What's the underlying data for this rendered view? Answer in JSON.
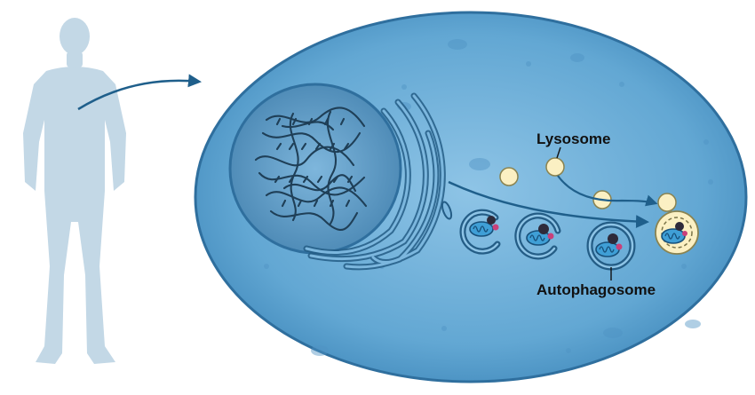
{
  "labels": {
    "lysosome": "Lysosome",
    "autophagosome": "Autophagosome"
  },
  "colors": {
    "body_silhouette": "#c3d8e6",
    "cell_fill": "#5fa4cf",
    "cell_edge": "#2f6f9e",
    "nucleus_fill": "#4f8cb8",
    "dna": "#1f3f57",
    "organelle_outline": "#245d86",
    "lysosome": "#fbf0c3",
    "arrow": "#1f5f8b"
  },
  "icons": {
    "figure": "human-body-icon",
    "nucleus": "nucleus-with-dna",
    "er": "endoplasmic-reticulum",
    "mitochondrion": "mitochondrion"
  }
}
